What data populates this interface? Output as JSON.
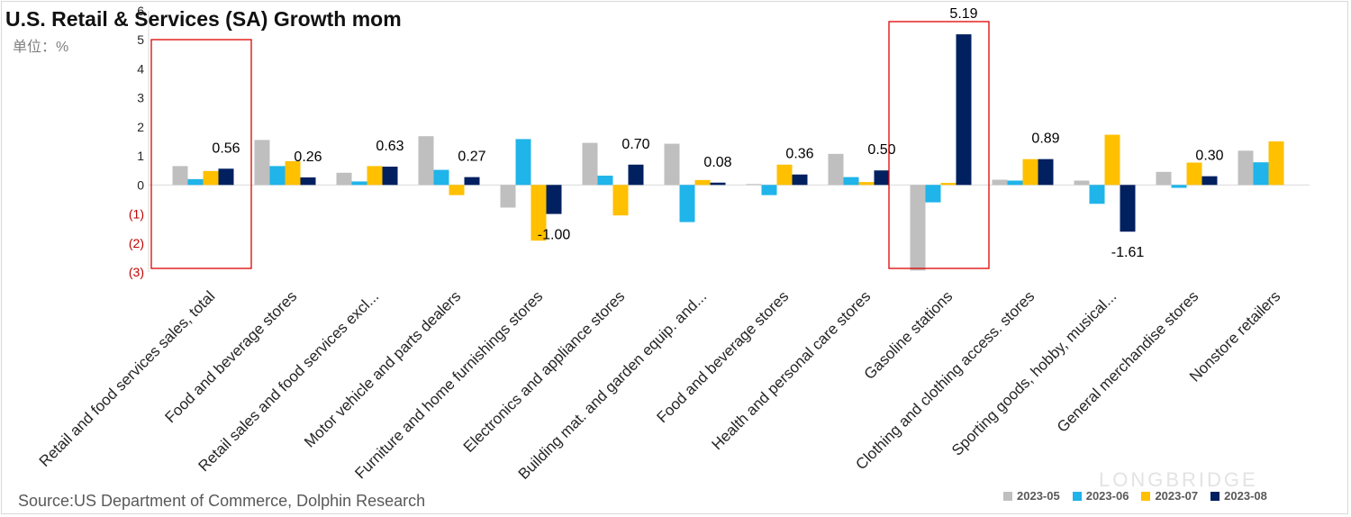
{
  "title": "U.S. Retail & Services (SA) Growth mom",
  "unit_label": "单位：%",
  "source": "Source:US Department of Commerce, Dolphin Research",
  "watermark": "LONGBRIDGE",
  "chart_data": {
    "type": "bar",
    "title": "U.S. Retail & Services (SA) Growth mom",
    "ylim": [
      -3,
      6
    ],
    "yticks": [
      {
        "value": 6,
        "label": "6"
      },
      {
        "value": 5,
        "label": "5"
      },
      {
        "value": 4,
        "label": "4"
      },
      {
        "value": 3,
        "label": "3"
      },
      {
        "value": 2,
        "label": "2"
      },
      {
        "value": 1,
        "label": "1"
      },
      {
        "value": 0,
        "label": "0"
      },
      {
        "value": -1,
        "label": "(1)"
      },
      {
        "value": -2,
        "label": "(2)"
      },
      {
        "value": -3,
        "label": "(3)"
      }
    ],
    "legend_position": "bottom-right",
    "grid": false,
    "categories": [
      "Retail and food services sales, total",
      "Food and beverage stores",
      "Retail sales and food services excl...",
      "Motor vehicle and parts dealers",
      "Furniture and home furnishings stores",
      "Electronics and appliance stores",
      "Building mat. and garden equip. and...",
      "Food and beverage stores",
      "Health and personal care stores",
      "Gasoline stations",
      "Clothing and clothing access. stores",
      "Sporting goods, hobby, musical...",
      "General merchandise stores",
      "Nonstore retailers"
    ],
    "series": [
      {
        "name": "2023-05",
        "color": "#bfbfbf",
        "values": [
          0.65,
          1.55,
          0.42,
          1.68,
          -0.78,
          1.45,
          1.42,
          0.03,
          1.07,
          -2.95,
          0.18,
          0.15,
          0.45,
          1.18
        ]
      },
      {
        "name": "2023-06",
        "color": "#1fb4ea",
        "values": [
          0.2,
          0.65,
          0.12,
          0.52,
          1.58,
          0.32,
          -1.28,
          -0.35,
          0.27,
          -0.6,
          0.15,
          -0.65,
          -0.1,
          0.78
        ]
      },
      {
        "name": "2023-07",
        "color": "#ffc000",
        "values": [
          0.48,
          0.82,
          0.65,
          -0.35,
          -1.92,
          -1.05,
          0.17,
          0.7,
          0.1,
          0.07,
          0.89,
          1.73,
          0.77,
          1.5
        ]
      },
      {
        "name": "2023-08",
        "color": "#002060",
        "values": [
          0.56,
          0.26,
          0.63,
          0.27,
          -1.0,
          0.7,
          0.08,
          0.36,
          0.5,
          5.19,
          0.89,
          -1.61,
          0.3,
          null
        ]
      }
    ],
    "data_labels": [
      "0.56",
      "0.26",
      "0.63",
      "0.27",
      "-1.00",
      "0.70",
      "0.08",
      "0.36",
      "0.50",
      "5.19",
      "0.89",
      "-1.61",
      "0.30",
      ""
    ],
    "highlight_boxes": [
      0,
      9
    ],
    "highlight_color": "#e00000"
  }
}
